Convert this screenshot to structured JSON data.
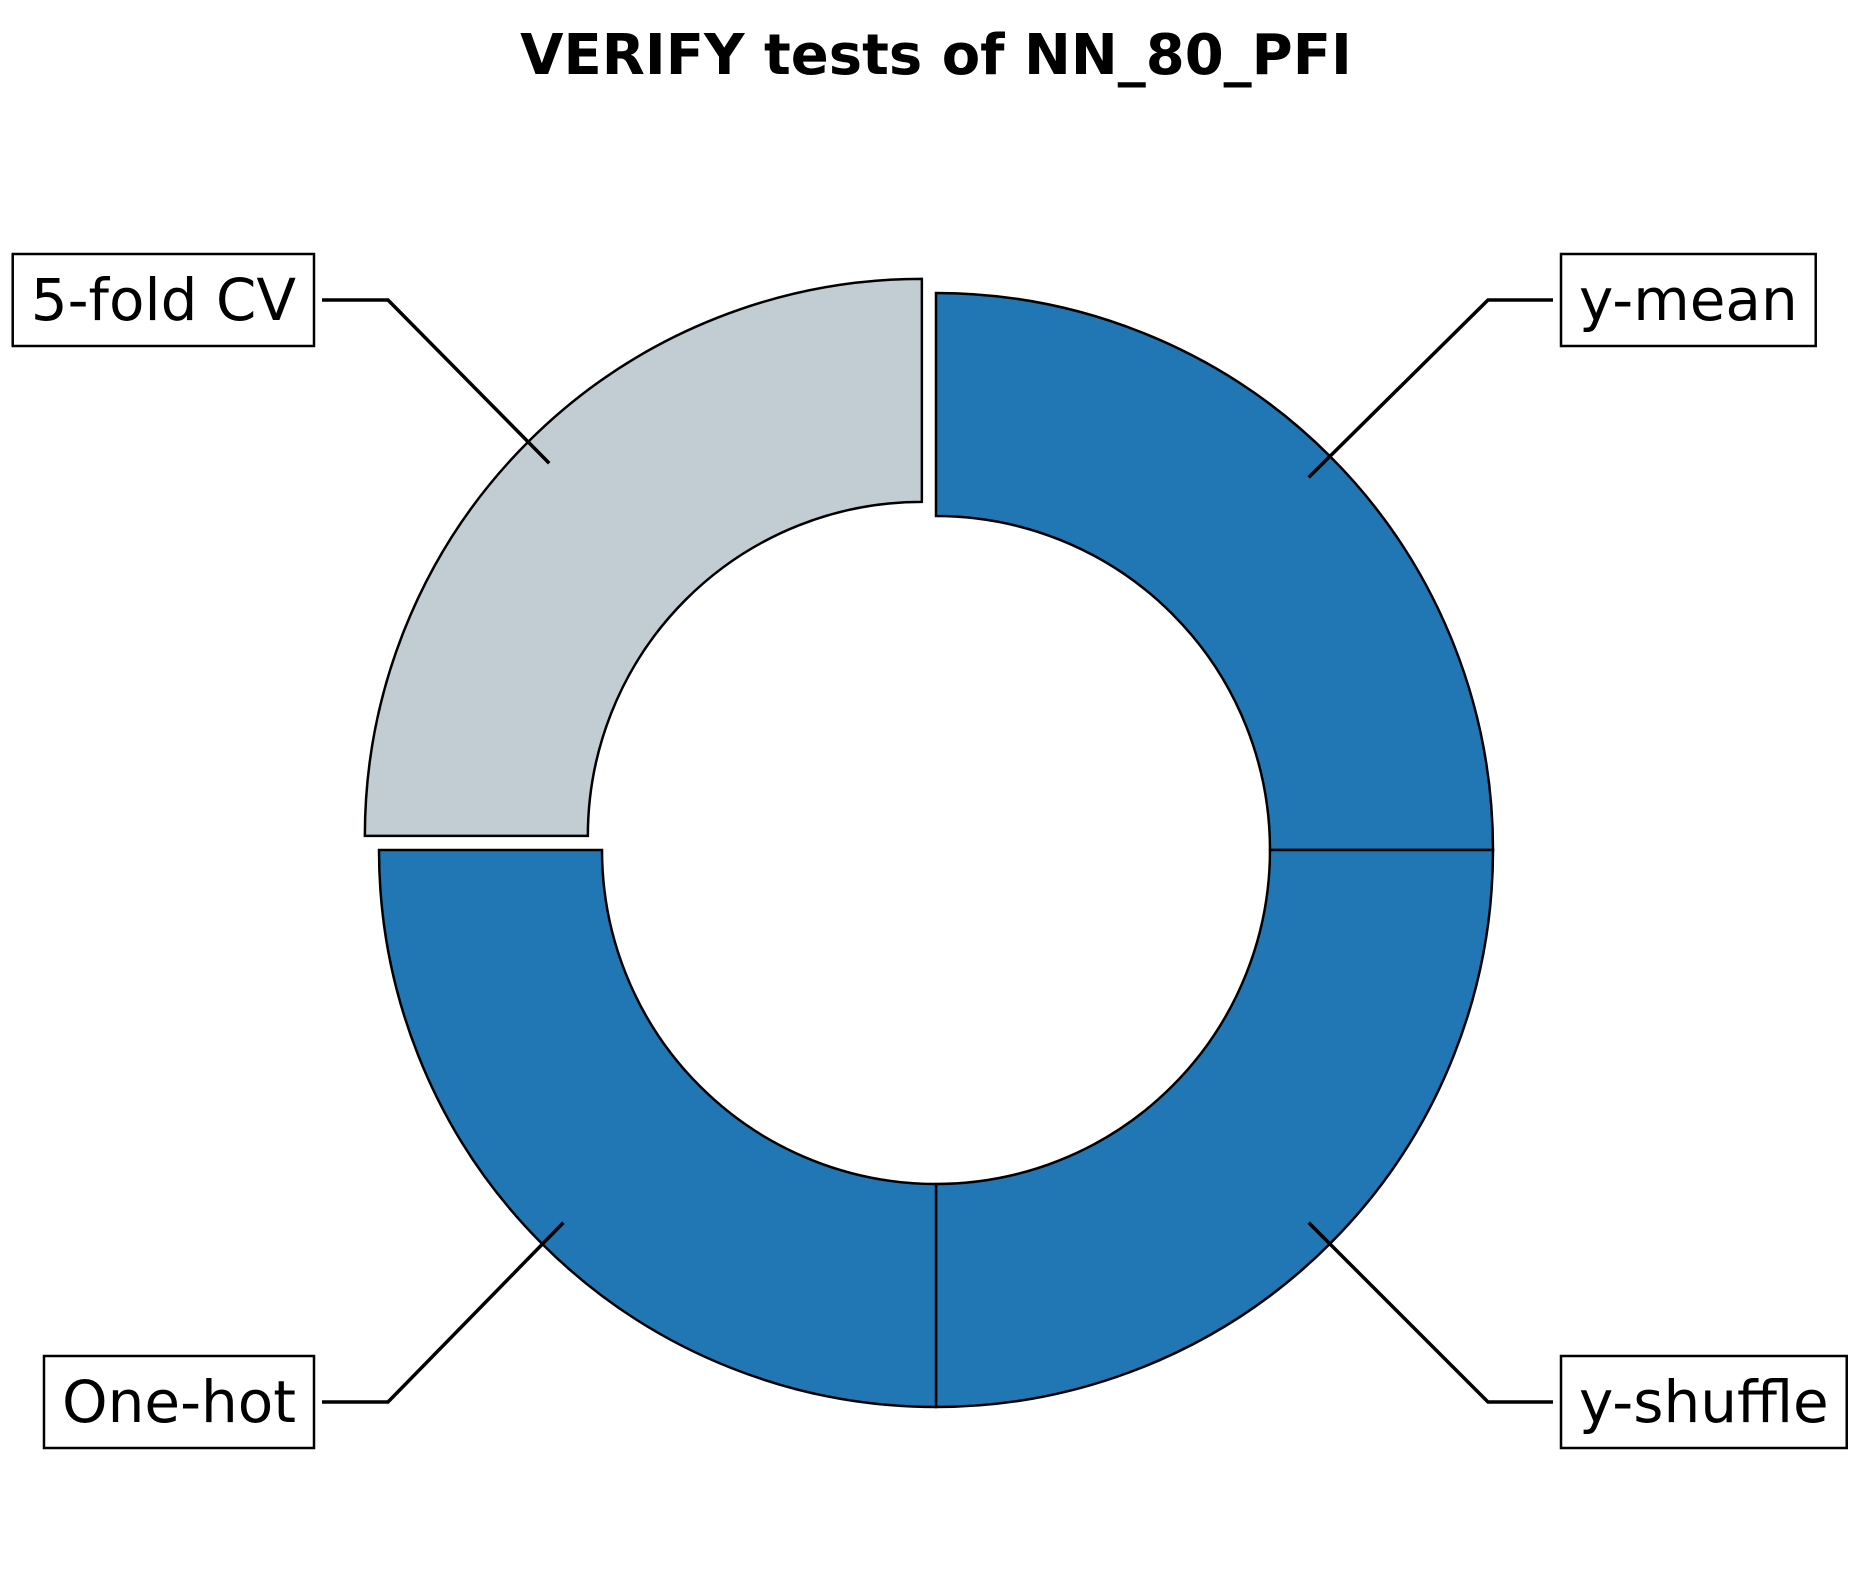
{
  "chart_data": {
    "type": "pie",
    "variant": "donut",
    "title": "VERIFY tests of NN_80_PFI",
    "slices": [
      {
        "label": "y-mean",
        "value": 1,
        "color": "#2077b4",
        "exploded": false
      },
      {
        "label": "y-shuffle",
        "value": 1,
        "color": "#2077b4",
        "exploded": false
      },
      {
        "label": "One-hot",
        "value": 1,
        "color": "#2077b4",
        "exploded": false
      },
      {
        "label": "5-fold CV",
        "value": 1,
        "color": "#c2cdd3",
        "exploded": true
      }
    ],
    "start_angle_deg": 90,
    "direction": "clockwise",
    "legend": "none"
  }
}
